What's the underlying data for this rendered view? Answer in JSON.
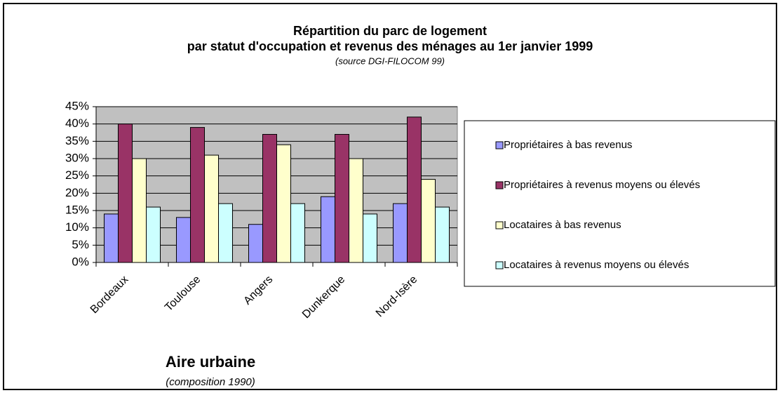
{
  "chart_data": {
    "type": "bar",
    "title": [
      "Répartition du parc de logement",
      "par statut d'occupation et revenus des ménages au 1er janvier 1999"
    ],
    "source": "(source DGI-FILOCOM 99)",
    "x_label": "Aire urbaine",
    "x_sublabel": "(composition 1990)",
    "categories": [
      "Bordeaux",
      "Toulouse",
      "Angers",
      "Dunkerque",
      "Nord-Isère"
    ],
    "series": [
      {
        "name": "Propriétaires à bas revenus",
        "color": "#9999ff",
        "values": [
          14,
          13,
          11,
          19,
          17
        ]
      },
      {
        "name": "Propriétaires à revenus moyens ou élevés",
        "color": "#993366",
        "values": [
          40,
          39,
          37,
          37,
          42
        ]
      },
      {
        "name": "Locataires à bas revenus",
        "color": "#ffffcc",
        "values": [
          30,
          31,
          34,
          30,
          24
        ]
      },
      {
        "name": "Locataires à revenus moyens ou élevés",
        "color": "#ccffff",
        "values": [
          16,
          17,
          17,
          14,
          16
        ]
      }
    ],
    "ylim": [
      0,
      45
    ],
    "yticks": [
      {
        "value": 0,
        "label": "0%"
      },
      {
        "value": 5,
        "label": "5%"
      },
      {
        "value": 10,
        "label": "10%"
      },
      {
        "value": 15,
        "label": "15%"
      },
      {
        "value": 20,
        "label": "20%"
      },
      {
        "value": 25,
        "label": "25%"
      },
      {
        "value": 30,
        "label": "30%"
      },
      {
        "value": 35,
        "label": "35%"
      },
      {
        "value": 40,
        "label": "40%"
      },
      {
        "value": 45,
        "label": "45%"
      }
    ],
    "grid": true,
    "legend": "right"
  }
}
